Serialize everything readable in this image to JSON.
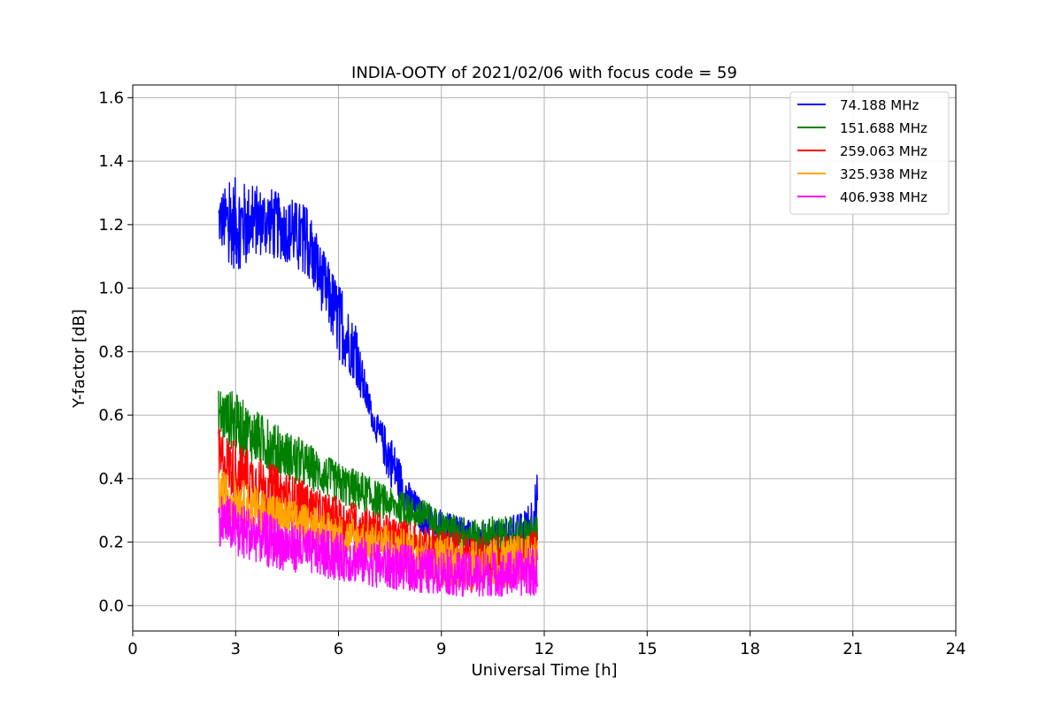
{
  "chart_data": {
    "type": "line",
    "title": "INDIA-OOTY of 2021/02/06 with focus code = 59",
    "xlabel": "Universal Time [h]",
    "ylabel": "Y-factor [dB]",
    "xlim": [
      0,
      24
    ],
    "ylim": [
      -0.08,
      1.64
    ],
    "xticks": [
      0,
      3,
      6,
      9,
      12,
      15,
      18,
      21,
      24
    ],
    "yticks": [
      "0.0",
      "0.2",
      "0.4",
      "0.6",
      "0.8",
      "1.0",
      "1.2",
      "1.4",
      "1.6"
    ],
    "grid": true,
    "legend_position": "top-right",
    "series": [
      {
        "name": "  74.188 MHz",
        "color": "#0000ff",
        "x": [
          2.5,
          3.0,
          3.5,
          4.0,
          4.5,
          5.0,
          5.5,
          6.0,
          6.5,
          7.0,
          7.5,
          8.0,
          8.5,
          9.0,
          9.5,
          10.0,
          10.5,
          11.0,
          11.5,
          11.8
        ],
        "min": [
          1.13,
          1.05,
          1.1,
          1.1,
          1.08,
          1.05,
          0.93,
          0.78,
          0.7,
          0.55,
          0.38,
          0.28,
          0.22,
          0.2,
          0.18,
          0.18,
          0.18,
          0.18,
          0.18,
          0.18
        ],
        "max": [
          1.3,
          1.35,
          1.32,
          1.32,
          1.28,
          1.27,
          1.13,
          1.02,
          0.88,
          0.62,
          0.55,
          0.4,
          0.32,
          0.3,
          0.28,
          0.26,
          0.26,
          0.28,
          0.3,
          0.42
        ]
      },
      {
        "name": "151.688 MHz",
        "color": "#008000",
        "x": [
          2.5,
          3.0,
          3.5,
          4.0,
          4.5,
          5.0,
          5.5,
          6.0,
          6.5,
          7.0,
          7.5,
          8.0,
          8.5,
          9.0,
          9.5,
          10.0,
          10.5,
          11.0,
          11.5,
          11.8
        ],
        "min": [
          0.52,
          0.48,
          0.45,
          0.42,
          0.4,
          0.37,
          0.35,
          0.32,
          0.3,
          0.28,
          0.27,
          0.25,
          0.23,
          0.2,
          0.18,
          0.16,
          0.15,
          0.15,
          0.15,
          0.15
        ],
        "max": [
          0.69,
          0.67,
          0.62,
          0.58,
          0.55,
          0.52,
          0.48,
          0.45,
          0.43,
          0.4,
          0.37,
          0.35,
          0.33,
          0.3,
          0.28,
          0.27,
          0.28,
          0.28,
          0.28,
          0.28
        ]
      },
      {
        "name": "259.063 MHz",
        "color": "#ff0000",
        "x": [
          2.5,
          3.0,
          3.5,
          4.0,
          4.5,
          5.0,
          5.5,
          6.0,
          6.5,
          7.0,
          7.5,
          8.0,
          8.5,
          9.0,
          9.5,
          10.0,
          10.5,
          11.0,
          11.5,
          11.8
        ],
        "min": [
          0.36,
          0.33,
          0.31,
          0.29,
          0.27,
          0.25,
          0.23,
          0.21,
          0.19,
          0.18,
          0.16,
          0.15,
          0.13,
          0.12,
          0.11,
          0.1,
          0.09,
          0.09,
          0.09,
          0.09
        ],
        "max": [
          0.56,
          0.52,
          0.48,
          0.45,
          0.42,
          0.39,
          0.36,
          0.34,
          0.32,
          0.3,
          0.28,
          0.27,
          0.25,
          0.24,
          0.23,
          0.22,
          0.22,
          0.22,
          0.23,
          0.24
        ]
      },
      {
        "name": "325.938 MHz",
        "color": "#ffa500",
        "x": [
          2.5,
          3.0,
          3.5,
          4.0,
          4.5,
          5.0,
          5.5,
          6.0,
          6.5,
          7.0,
          7.5,
          8.0,
          8.5,
          9.0,
          9.5,
          10.0,
          10.5,
          11.0,
          11.5,
          11.8
        ],
        "min": [
          0.28,
          0.26,
          0.24,
          0.22,
          0.21,
          0.19,
          0.18,
          0.16,
          0.15,
          0.13,
          0.12,
          0.1,
          0.08,
          0.06,
          0.05,
          0.04,
          0.05,
          0.06,
          0.07,
          0.08
        ],
        "max": [
          0.43,
          0.41,
          0.38,
          0.36,
          0.34,
          0.32,
          0.3,
          0.28,
          0.27,
          0.26,
          0.25,
          0.24,
          0.23,
          0.22,
          0.21,
          0.2,
          0.21,
          0.22,
          0.22,
          0.23
        ]
      },
      {
        "name": "406.938 MHz",
        "color": "#ff00ff",
        "x": [
          2.5,
          3.0,
          3.5,
          4.0,
          4.5,
          5.0,
          5.5,
          6.0,
          6.5,
          7.0,
          7.5,
          8.0,
          8.5,
          9.0,
          9.5,
          10.0,
          10.5,
          11.0,
          11.5,
          11.8
        ],
        "min": [
          0.19,
          0.16,
          0.14,
          0.12,
          0.11,
          0.1,
          0.09,
          0.08,
          0.07,
          0.06,
          0.05,
          0.05,
          0.04,
          0.04,
          0.03,
          0.03,
          0.03,
          0.03,
          0.03,
          0.03
        ],
        "max": [
          0.36,
          0.33,
          0.31,
          0.29,
          0.27,
          0.25,
          0.24,
          0.23,
          0.22,
          0.21,
          0.2,
          0.19,
          0.18,
          0.18,
          0.17,
          0.17,
          0.17,
          0.17,
          0.18,
          0.18
        ]
      }
    ]
  }
}
